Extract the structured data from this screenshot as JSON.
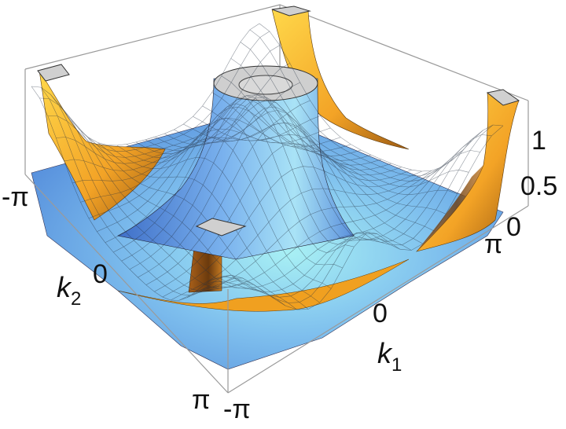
{
  "chart_data": {
    "type": "surface3d",
    "xlabel": "k",
    "xlabel_sub": "1",
    "ylabel": "k",
    "ylabel_sub": "2",
    "x_range": [
      "-π",
      "π"
    ],
    "y_range": [
      "-π",
      "π"
    ],
    "z_range": [
      0,
      1.2
    ],
    "x_ticks": [
      "-π",
      "0",
      "π"
    ],
    "y_ticks": [
      "-π",
      "0",
      "π"
    ],
    "z_ticks": [
      "0",
      "0.5",
      "1"
    ],
    "surfaces": [
      {
        "name": "",
        "color": "#6fa3e6",
        "highlight": "#9fe8f0",
        "shape": "peak at k1=0,k2=0 and at k1=0,k2=π; clipped at z=1.2"
      },
      {
        "name": "",
        "color": "#f0a020",
        "highlight": "#ffe05a",
        "shape": "peaks at the corners k1=±π,k2=±π; clipped at z=1.2"
      }
    ],
    "mesh": true,
    "box": true
  },
  "colors": {
    "blue_surface": "#6fa3e6",
    "orange_surface": "#f0a020",
    "clip_cap": "#d0d0d0",
    "box_edge": "#9a9a9a"
  }
}
